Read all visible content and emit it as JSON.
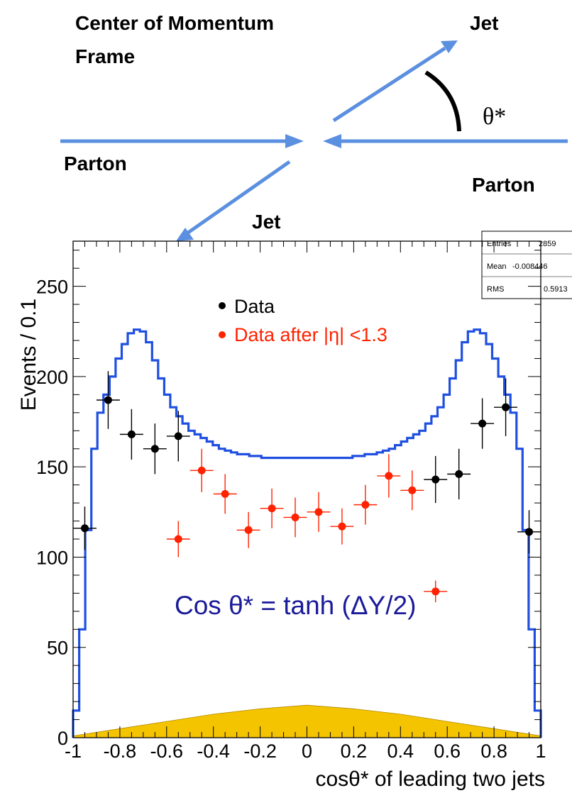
{
  "diagram": {
    "title_line1": "Center of Momentum",
    "title_line2": "Frame",
    "jet_top": "Jet",
    "jet_bottom": "Jet",
    "parton_left": "Parton",
    "parton_right": "Parton",
    "angle_label": "θ*",
    "arrow_color": "#5b8fe0"
  },
  "stats_box": {
    "rows": [
      {
        "label": "Entries",
        "value": "2859"
      },
      {
        "label": "Mean",
        "value": "-0.008446"
      },
      {
        "label": "RMS",
        "value": "0.5913"
      }
    ]
  },
  "chart_data": {
    "type": "histogram",
    "ylabel": "Events / 0.1",
    "xlabel": "cosθ* of leading two jets",
    "xlim": [
      -1,
      1
    ],
    "ylim": [
      0,
      275
    ],
    "x_ticks": [
      "-1",
      "-0.8",
      "-0.6",
      "-0.4",
      "-0.2",
      "0",
      "0.2",
      "0.4",
      "0.6",
      "0.8",
      "1"
    ],
    "y_ticks": [
      "0",
      "50",
      "100",
      "150",
      "200",
      "250"
    ],
    "annotation": "Cos θ* = tanh (ΔY/2)",
    "legend": [
      {
        "label": "Data",
        "color": "#000000"
      },
      {
        "label": "Data after |η| <1.3",
        "color": "#ff2200"
      }
    ],
    "series": [
      {
        "name": "Data",
        "color": "#000000",
        "x": [
          -0.95,
          -0.85,
          -0.75,
          -0.65,
          -0.55,
          0.55,
          0.65,
          0.75,
          0.85,
          0.95
        ],
        "y": [
          116,
          187,
          168,
          160,
          167,
          143,
          146,
          174,
          183,
          114
        ],
        "yerr": [
          12,
          16,
          14,
          14,
          14,
          13,
          14,
          14,
          16,
          12
        ]
      },
      {
        "name": "Data after |η| <1.3",
        "color": "#ff2200",
        "x": [
          -0.55,
          -0.45,
          -0.35,
          -0.25,
          -0.15,
          -0.05,
          0.05,
          0.15,
          0.25,
          0.35,
          0.45,
          0.55
        ],
        "y": [
          110,
          148,
          135,
          115,
          127,
          122,
          125,
          117,
          129,
          145,
          137,
          81
        ],
        "yerr": [
          10,
          12,
          11,
          10,
          11,
          11,
          11,
          10,
          11,
          12,
          11,
          6
        ]
      }
    ],
    "histogram_line": {
      "color": "#1f4fe0",
      "bin_width": 0.025,
      "values": [
        15,
        60,
        115,
        160,
        180,
        190,
        200,
        210,
        218,
        224,
        226,
        225,
        219,
        209,
        199,
        190,
        183,
        178,
        174,
        170,
        168,
        166,
        164,
        162,
        160,
        159,
        158,
        157,
        157,
        156,
        156,
        155,
        155,
        155,
        155,
        155,
        155,
        155,
        155,
        155,
        155,
        155,
        155,
        155,
        155,
        155,
        156,
        156,
        157,
        157,
        158,
        159,
        160,
        162,
        164,
        166,
        168,
        170,
        174,
        178,
        183,
        190,
        199,
        209,
        219,
        225,
        226,
        224,
        218,
        210,
        200,
        190,
        180,
        160,
        115,
        60,
        15
      ]
    },
    "filled_curve": {
      "color": "#f5c400",
      "x": [
        -1,
        -0.8,
        -0.6,
        -0.4,
        -0.2,
        0,
        0.2,
        0.4,
        0.6,
        0.8,
        1
      ],
      "y": [
        1,
        5,
        9,
        13,
        16,
        18,
        16,
        13,
        9,
        5,
        1
      ]
    }
  }
}
